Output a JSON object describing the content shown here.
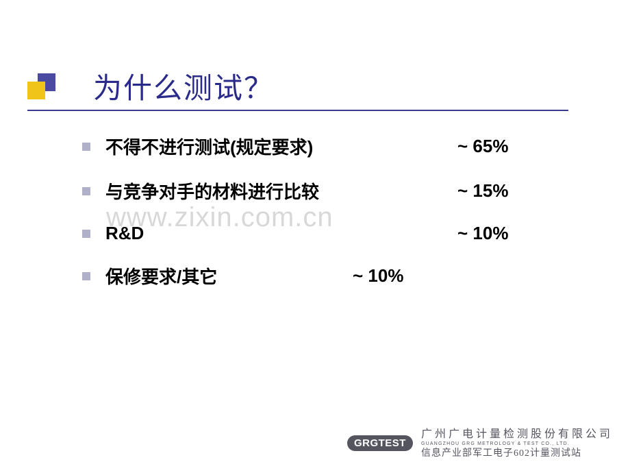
{
  "title": "为什么测试？",
  "items": [
    {
      "text": "不得不进行测试(规定要求)",
      "pct": "~ 65%",
      "pct_left": 548
    },
    {
      "text": "与竞争对手的材料进行比较",
      "pct": "~ 15%",
      "pct_left": 548
    },
    {
      "text": " R&D",
      "pct": "~ 10%",
      "pct_left": 548
    },
    {
      "text": "保修要求/其它",
      "pct": "~ 10%",
      "pct_left": 395
    }
  ],
  "watermark": "www.zixin.com.cn",
  "footer": {
    "badge": "GRGTEST",
    "line1_cn": "广州广电计量检测股份有限公司",
    "line1_en": "GUANGZHOU GRG METROLOGY & TEST CO., LTD.",
    "line2": "信息产业部军工电子602计量测试站"
  },
  "colors": {
    "title_color": "#2a2a8a",
    "underline_color": "#3a3a8f",
    "bullet_color": "#b0b0c8",
    "block_top": "#4a4aa0",
    "block_bot": "#f0c419",
    "badge_bg": "#555560",
    "watermark_color": "#d8d8d8"
  }
}
